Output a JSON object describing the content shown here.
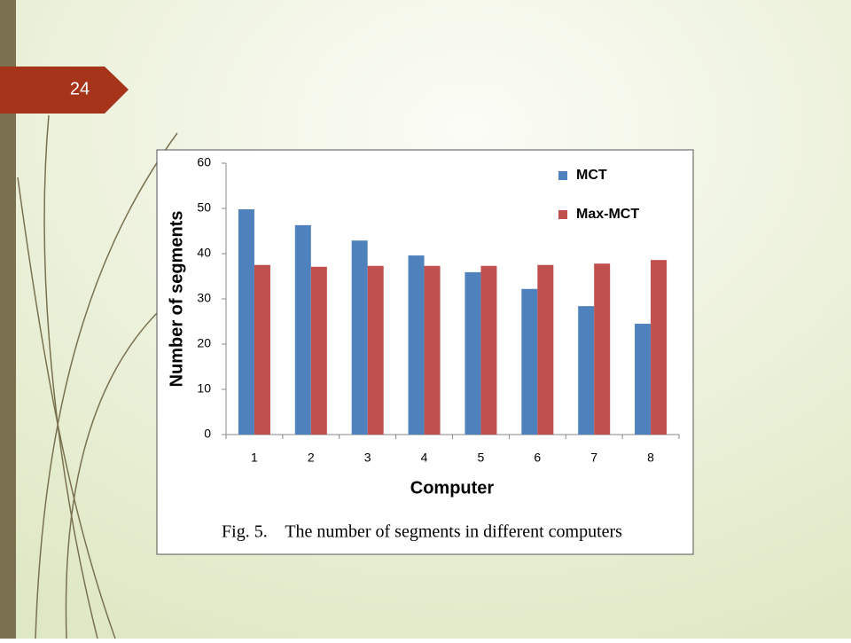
{
  "slide_number": "24",
  "chart_data": {
    "type": "bar",
    "caption": "Fig. 5.    The number of segments in different computers",
    "x_label": "Computer",
    "y_label": "Number of segments",
    "categories": [
      "1",
      "2",
      "3",
      "4",
      "5",
      "6",
      "7",
      "8"
    ],
    "series": [
      {
        "name": "MCT",
        "color": "#4f81bd",
        "values": [
          49.8,
          46.3,
          42.9,
          39.6,
          35.9,
          32.2,
          28.4,
          24.5
        ]
      },
      {
        "name": "Max-MCT",
        "color": "#c0504d",
        "values": [
          37.5,
          37.1,
          37.3,
          37.3,
          37.3,
          37.5,
          37.8,
          38.6
        ]
      }
    ],
    "ylim": [
      0,
      60
    ],
    "yticks": [
      0,
      10,
      20,
      30,
      40,
      50,
      60
    ],
    "grid": false,
    "legend": "top-right"
  }
}
